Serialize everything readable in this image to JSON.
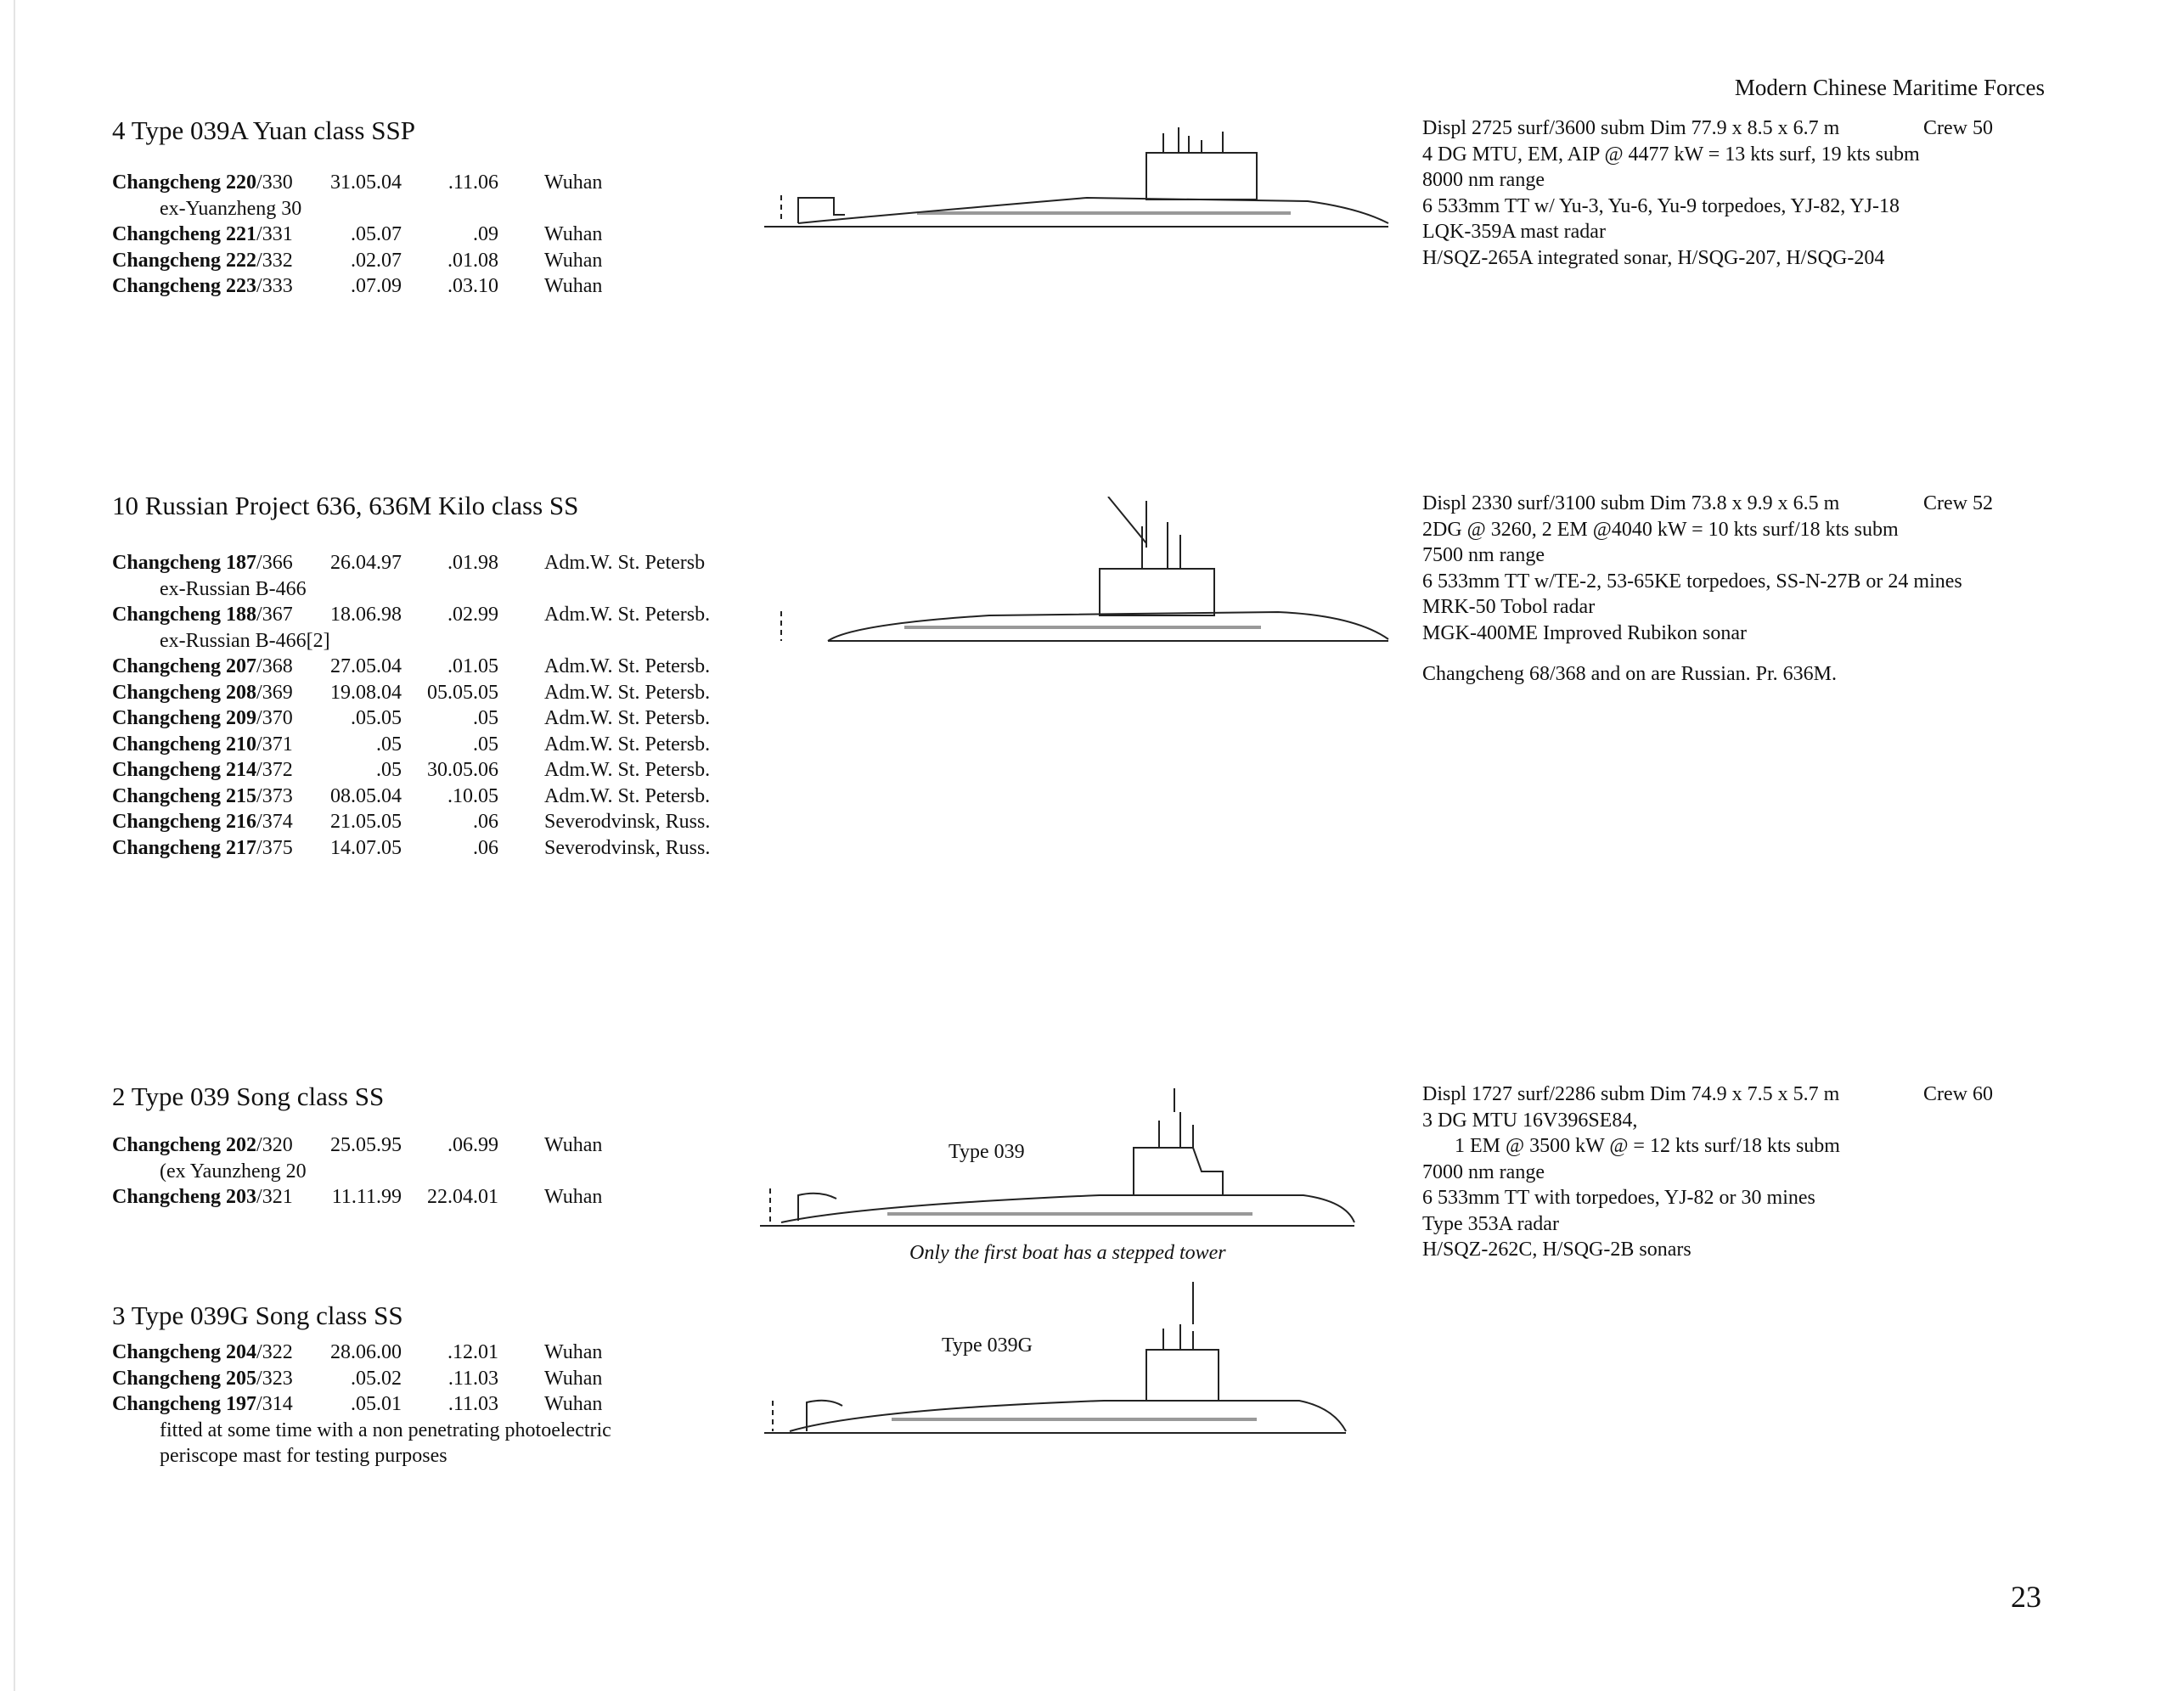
{
  "header": "Modern Chinese Maritime Forces",
  "page_number": "23",
  "sections": [
    {
      "title": "4 Type 039A Yuan class SSP",
      "rows": [
        {
          "bold": "Changcheng 220",
          "rest": "/330",
          "laid": "31.05.04",
          "launched": ".11.06",
          "yard": "Wuhan"
        },
        {
          "note": "ex-Yuanzheng 30"
        },
        {
          "bold": "Changcheng 221",
          "rest": "/331",
          "laid": ".05.07",
          "launched": ".09",
          "yard": "Wuhan"
        },
        {
          "bold": "Changcheng 222",
          "rest": "/332",
          "laid": ".02.07",
          "launched": ".01.08",
          "yard": "Wuhan"
        },
        {
          "bold": "Changcheng 223",
          "rest": "/333",
          "laid": ".07.09",
          "launched": ".03.10",
          "yard": "Wuhan"
        }
      ],
      "specs": {
        "first": "Displ 2725 surf/3600 subm Dim 77.9 x 8.5 x 6.7 m",
        "crew": "Crew 50",
        "lines": [
          "4 DG MTU, EM, AIP @ 4477 kW = 13 kts surf, 19 kts subm",
          "8000 nm range",
          "6 533mm TT w/ Yu-3, Yu-6, Yu-9 torpedoes, YJ-82, YJ-18",
          "LQK-359A mast radar",
          "H/SQZ-265A integrated sonar, H/SQG-207, H/SQG-204"
        ]
      }
    },
    {
      "title": "10 Russian Project 636, 636M Kilo class SS",
      "rows": [
        {
          "bold": "Changcheng 187",
          "rest": "/366",
          "laid": "26.04.97",
          "launched": ".01.98",
          "yard": "Adm.W. St. Petersb"
        },
        {
          "note": "ex-Russian B-466"
        },
        {
          "bold": "Changcheng 188",
          "rest": "/367",
          "laid": "18.06.98",
          "launched": ".02.99",
          "yard": "Adm.W. St. Petersb."
        },
        {
          "note": "ex-Russian B-466[2]"
        },
        {
          "bold": "Changcheng 207",
          "rest": "/368",
          "laid": "27.05.04",
          "launched": ".01.05",
          "yard": "Adm.W. St. Petersb."
        },
        {
          "bold": "Changcheng 208",
          "rest": "/369",
          "laid": "19.08.04",
          "launched": "05.05.05",
          "yard": "Adm.W. St. Petersb."
        },
        {
          "bold": "Changcheng 209",
          "rest": "/370",
          "laid": ".05.05",
          "launched": ".05",
          "yard": "Adm.W. St. Petersb."
        },
        {
          "bold": "Changcheng 210",
          "rest": "/371",
          "laid": ".05",
          "launched": ".05",
          "yard": "Adm.W. St. Petersb."
        },
        {
          "bold": "Changcheng 214",
          "rest": "/372",
          "laid": ".05",
          "launched": "30.05.06",
          "yard": "Adm.W. St. Petersb."
        },
        {
          "bold": "Changcheng 215",
          "rest": "/373",
          "laid": "08.05.04",
          "launched": ".10.05",
          "yard": "Adm.W. St. Petersb."
        },
        {
          "bold": "Changcheng 216",
          "rest": "/374",
          "laid": "21.05.05",
          "launched": ".06",
          "yard": "Severodvinsk, Russ."
        },
        {
          "bold": "Changcheng 217",
          "rest": "/375",
          "laid": "14.07.05",
          "launched": ".06",
          "yard": "Severodvinsk, Russ."
        }
      ],
      "specs": {
        "first": "Displ 2330 surf/3100 subm Dim 73.8 x 9.9 x 6.5 m",
        "crew": "Crew 52",
        "lines": [
          "2DG @ 3260, 2 EM @4040 kW = 10 kts surf/18 kts subm",
          "7500 nm range",
          "6 533mm TT w/TE-2, 53-65KE torpedoes, SS-N-27B or 24 mines",
          "MRK-50 Tobol radar",
          "MGK-400ME Improved Rubikon sonar"
        ],
        "note": "Changcheng 68/368 and on are Russian. Pr. 636M."
      }
    },
    {
      "title": "2 Type 039 Song class SS",
      "rows": [
        {
          "bold": "Changcheng 202",
          "rest": "/320",
          "laid": "25.05.95",
          "launched": ".06.99",
          "yard": "Wuhan"
        },
        {
          "note": "(ex Yaunzheng 20"
        },
        {
          "bold": "Changcheng 203",
          "rest": "/321",
          "laid": "11.11.99",
          "launched": "22.04.01",
          "yard": "Wuhan"
        }
      ],
      "specs": {
        "first": "Displ 1727 surf/2286 subm Dim 74.9 x 7.5 x 5.7 m",
        "crew": "Crew 60",
        "lines": [
          "3 DG MTU 16V396SE84,",
          "1 EM @ 3500 kW @ = 12 kts surf/18 kts subm",
          "7000 nm range",
          "6 533mm TT with torpedoes, YJ-82 or 30 mines",
          "Type 353A radar",
          "H/SQZ-262C, H/SQG-2B sonars"
        ]
      },
      "drawing_label": "Type 039",
      "caption": "Only the first boat has a stepped tower"
    },
    {
      "title": "3 Type 039G Song class SS",
      "rows": [
        {
          "bold": "Changcheng 204",
          "rest": "/322",
          "laid": "28.06.00",
          "launched": ".12.01",
          "yard": "Wuhan"
        },
        {
          "bold": "Changcheng 205",
          "rest": "/323",
          "laid": ".05.02",
          "launched": ".11.03",
          "yard": "Wuhan"
        },
        {
          "bold": "Changcheng 197",
          "rest": "/314",
          "laid": ".05.01",
          "launched": ".11.03",
          "yard": "Wuhan"
        },
        {
          "note": "fitted at some time with a non penetrating photoelectric"
        },
        {
          "note": "periscope mast for testing purposes"
        }
      ],
      "drawing_label": "Type 039G"
    }
  ]
}
